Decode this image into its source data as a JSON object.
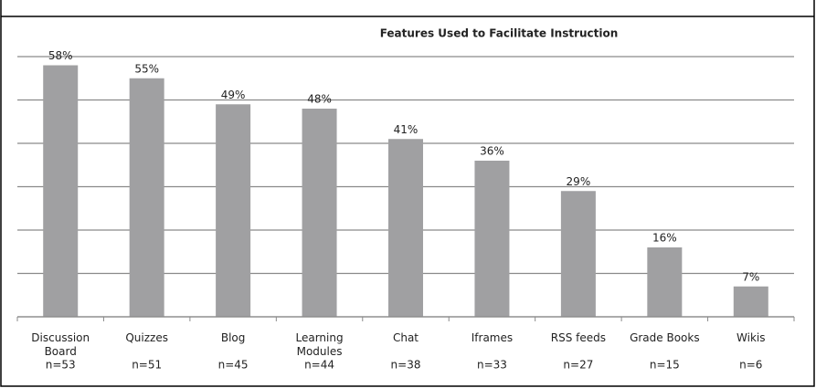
{
  "chart_data": {
    "type": "bar",
    "title": "Features Used to Facilitate Instruction",
    "categories": [
      "Discussion Board",
      "Quizzes",
      "Blog",
      "Learning Modules",
      "Chat",
      "Iframes",
      "RSS feeds",
      "Grade Books",
      "Wikis"
    ],
    "values": [
      58,
      55,
      49,
      48,
      41,
      36,
      29,
      16,
      7
    ],
    "value_labels": [
      "58%",
      "55%",
      "49%",
      "48%",
      "41%",
      "36%",
      "29%",
      "16%",
      "7%"
    ],
    "annotations": [
      "n=53",
      "n=51",
      "n=45",
      "n=44",
      "n=38",
      "n=33",
      "n=27",
      "n=15",
      "n=6"
    ],
    "color": "#a0a0a2",
    "ylim": [
      0,
      60
    ],
    "yticks": [
      0,
      10,
      20,
      30,
      40,
      50,
      60
    ],
    "grid": true
  }
}
